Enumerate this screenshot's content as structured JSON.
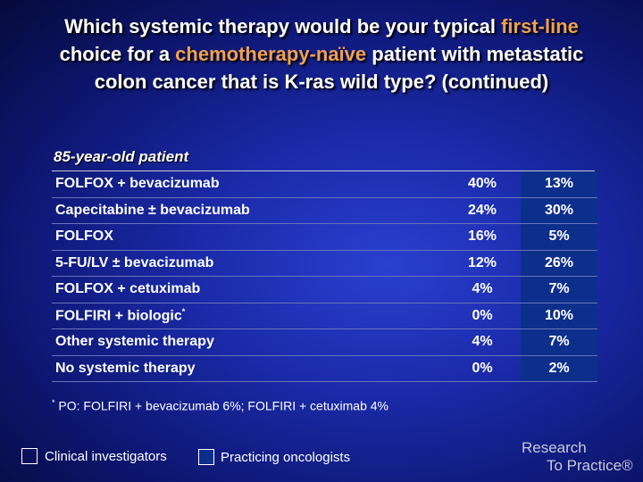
{
  "title": {
    "part1": "Which systemic therapy would be your typical ",
    "hl1": "first-line",
    "part2": " choice for a ",
    "hl2": "chemotherapy-naïve",
    "part3": " patient with metastatic colon cancer that is K-ras wild type? (continued)"
  },
  "subtitle": "85-year-old patient",
  "rows": [
    {
      "label": "FOLFOX + bevacizumab",
      "sup": "",
      "ci": "40%",
      "po": "13%"
    },
    {
      "label": "Capecitabine ± bevacizumab",
      "sup": "",
      "ci": "24%",
      "po": "30%"
    },
    {
      "label": "FOLFOX",
      "sup": "",
      "ci": "16%",
      "po": "5%"
    },
    {
      "label": "5-FU/LV ± bevacizumab",
      "sup": "",
      "ci": "12%",
      "po": "26%"
    },
    {
      "label": "FOLFOX + cetuximab",
      "sup": "",
      "ci": "4%",
      "po": "7%"
    },
    {
      "label": "FOLFIRI + biologic",
      "sup": "*",
      "ci": "0%",
      "po": "10%"
    },
    {
      "label": "Other systemic therapy",
      "sup": "",
      "ci": "4%",
      "po": "7%"
    },
    {
      "label": "No systemic therapy",
      "sup": "",
      "ci": "0%",
      "po": "2%"
    }
  ],
  "footnote": {
    "marker": "*",
    "text": " PO: FOLFIRI + bevacizumab 6%; FOLFIRI + cetuximab 4%"
  },
  "legend": {
    "ci_label": "Clinical investigators",
    "po_label": "Practicing oncologists",
    "po_color": "#0d2f8c"
  },
  "logo": {
    "line1": "Research",
    "line2": "To Practice®"
  }
}
